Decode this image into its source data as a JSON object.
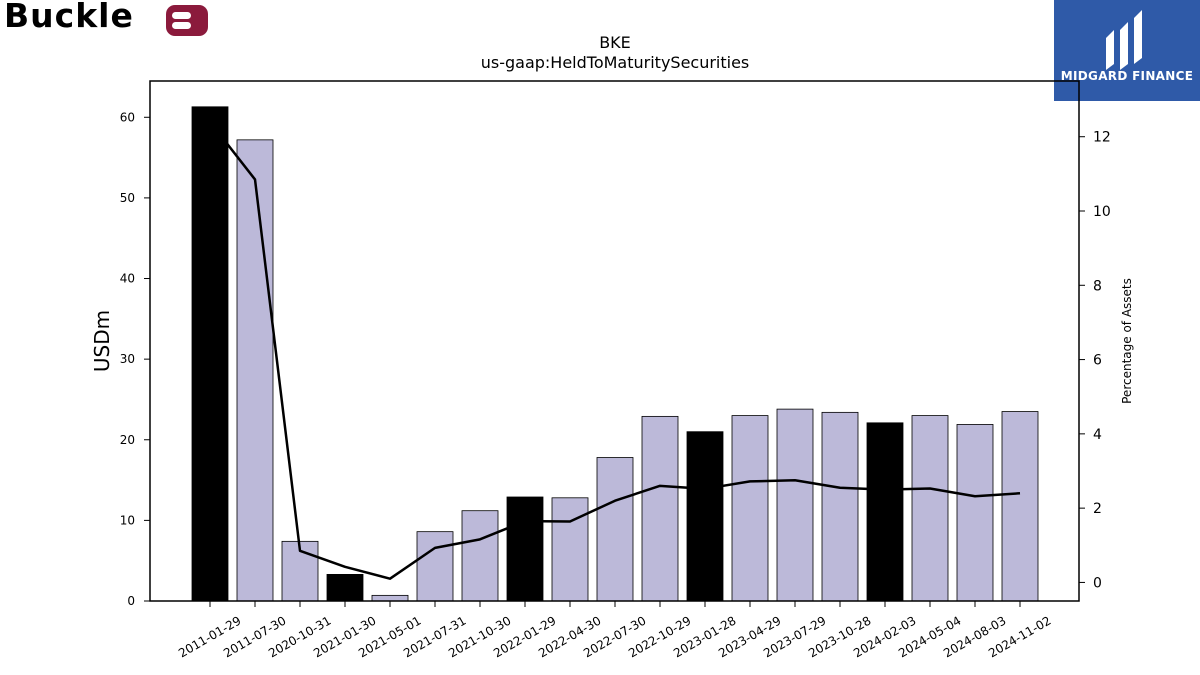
{
  "brand": {
    "company_logo_text": "Buckle",
    "company_logo_color": "#8b1a3c",
    "partner_logo_text": "MIDGARD FINANCE",
    "partner_logo_color": "#2f5aa8"
  },
  "chart_data": {
    "type": "bar",
    "title": "BKE",
    "subtitle": "us-gaap:HeldToMaturitySecurities",
    "ylabel": "USDm",
    "y2label": "Percentage of Assets",
    "ylim": [
      0,
      64.5
    ],
    "y2lim": [
      -0.5,
      13.5
    ],
    "yticks": [
      0,
      10,
      20,
      30,
      40,
      50,
      60
    ],
    "y2ticks": [
      0,
      2,
      4,
      6,
      8,
      10,
      12
    ],
    "categories": [
      "2011-01-29",
      "2011-07-30",
      "2020-10-31",
      "2021-01-30",
      "2021-05-01",
      "2021-07-31",
      "2021-10-30",
      "2022-01-29",
      "2022-04-30",
      "2022-07-30",
      "2022-10-29",
      "2023-01-28",
      "2023-04-29",
      "2023-07-29",
      "2023-10-28",
      "2024-02-03",
      "2024-05-04",
      "2024-08-03",
      "2024-11-02"
    ],
    "series": [
      {
        "type": "bar",
        "axis": "left",
        "values": [
          61.3,
          57.2,
          7.4,
          3.3,
          0.7,
          8.6,
          11.2,
          12.9,
          12.8,
          17.8,
          22.9,
          21.0,
          23.0,
          23.8,
          23.4,
          22.1,
          23.0,
          21.9,
          23.5
        ],
        "colors": [
          "#000000",
          "#bcb9d9",
          "#bcb9d9",
          "#000000",
          "#bcb9d9",
          "#bcb9d9",
          "#bcb9d9",
          "#000000",
          "#bcb9d9",
          "#bcb9d9",
          "#bcb9d9",
          "#000000",
          "#bcb9d9",
          "#bcb9d9",
          "#bcb9d9",
          "#000000",
          "#bcb9d9",
          "#bcb9d9",
          "#bcb9d9"
        ]
      },
      {
        "type": "line",
        "axis": "right",
        "color": "#000000",
        "values": [
          12.4,
          10.85,
          0.85,
          0.42,
          0.1,
          0.93,
          1.16,
          1.65,
          1.64,
          2.2,
          2.6,
          2.52,
          2.72,
          2.75,
          2.55,
          2.5,
          2.53,
          2.32,
          2.4
        ]
      }
    ],
    "grid": false,
    "legend": "none"
  }
}
